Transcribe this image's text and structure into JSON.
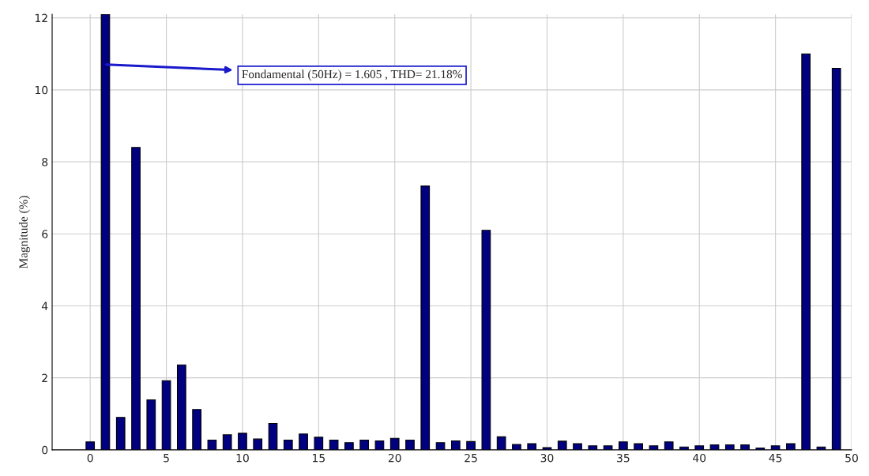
{
  "chart_data": {
    "type": "bar",
    "ylabel": "Magnitude (%)",
    "x": [
      0,
      1,
      2,
      3,
      4,
      5,
      6,
      7,
      8,
      9,
      10,
      11,
      12,
      13,
      14,
      15,
      16,
      17,
      18,
      19,
      20,
      21,
      22,
      23,
      24,
      25,
      26,
      27,
      28,
      29,
      30,
      31,
      32,
      33,
      34,
      35,
      36,
      37,
      38,
      39,
      40,
      41,
      42,
      43,
      44,
      45,
      46,
      47,
      48,
      49
    ],
    "values": [
      0.22,
      12.1,
      0.9,
      8.4,
      1.39,
      1.92,
      2.36,
      1.12,
      0.27,
      0.42,
      0.46,
      0.3,
      0.73,
      0.27,
      0.44,
      0.35,
      0.27,
      0.2,
      0.27,
      0.25,
      0.32,
      0.27,
      7.33,
      0.2,
      0.25,
      0.23,
      6.1,
      0.36,
      0.15,
      0.17,
      0.06,
      0.24,
      0.17,
      0.11,
      0.11,
      0.22,
      0.17,
      0.11,
      0.22,
      0.08,
      0.11,
      0.14,
      0.14,
      0.14,
      0.05,
      0.11,
      0.17,
      11.0,
      0.08,
      10.6
    ],
    "color": "#000080",
    "xlim": [
      -2.5,
      50
    ],
    "xticks": [
      0,
      5,
      10,
      15,
      20,
      25,
      30,
      35,
      40,
      45,
      50
    ],
    "ylim": [
      0,
      12.1
    ],
    "yticks": [
      0,
      2,
      4,
      6,
      8,
      10,
      12
    ],
    "grid": true,
    "annotations": [
      "Fondamental (50Hz) = 1.605 , THD= 21.18%"
    ]
  }
}
